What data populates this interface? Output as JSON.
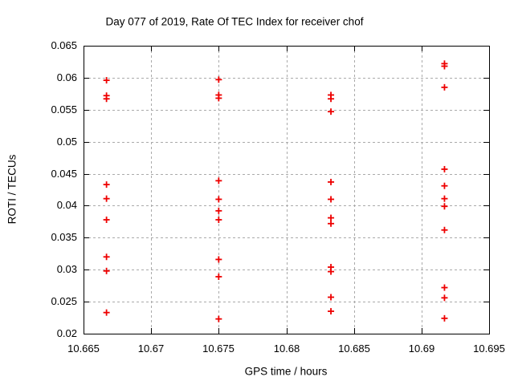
{
  "chart_data": {
    "type": "scatter",
    "title": "Day 077 of 2019, Rate Of TEC Index for receiver chof",
    "xlabel": "GPS time / hours",
    "ylabel": "ROTI / TECUs",
    "xlim": [
      10.665,
      10.695
    ],
    "ylim": [
      0.02,
      0.065
    ],
    "xticks": [
      10.665,
      10.67,
      10.675,
      10.68,
      10.685,
      10.69,
      10.695
    ],
    "xtick_labels": [
      "10.665",
      "10.67",
      "10.675",
      "10.68",
      "10.685",
      "10.69",
      "10.695"
    ],
    "yticks": [
      0.02,
      0.025,
      0.03,
      0.035,
      0.04,
      0.045,
      0.05,
      0.055,
      0.06,
      0.065
    ],
    "ytick_labels": [
      "0.02",
      "0.025",
      "0.03",
      "0.035",
      "0.04",
      "0.045",
      "0.05",
      "0.055",
      "0.06",
      "0.065"
    ],
    "grid": true,
    "legend": "none",
    "marker": "plus",
    "colors": {
      "marker": "#ee0000",
      "grid": "#aaaaaa",
      "axis": "#000000",
      "background": "#ffffff"
    },
    "points": [
      [
        10.6667,
        0.0596
      ],
      [
        10.6667,
        0.0572
      ],
      [
        10.6667,
        0.0567
      ],
      [
        10.6667,
        0.0433
      ],
      [
        10.6667,
        0.0411
      ],
      [
        10.6667,
        0.0378
      ],
      [
        10.6667,
        0.032
      ],
      [
        10.6667,
        0.0298
      ],
      [
        10.6667,
        0.0233
      ],
      [
        10.675,
        0.0597
      ],
      [
        10.675,
        0.0573
      ],
      [
        10.675,
        0.0568
      ],
      [
        10.675,
        0.0439
      ],
      [
        10.675,
        0.041
      ],
      [
        10.675,
        0.0392
      ],
      [
        10.675,
        0.0378
      ],
      [
        10.675,
        0.0316
      ],
      [
        10.675,
        0.0289
      ],
      [
        10.675,
        0.0223
      ],
      [
        10.6833,
        0.0573
      ],
      [
        10.6833,
        0.0567
      ],
      [
        10.6833,
        0.0547
      ],
      [
        10.6833,
        0.0437
      ],
      [
        10.6833,
        0.041
      ],
      [
        10.6833,
        0.0381
      ],
      [
        10.6833,
        0.0372
      ],
      [
        10.6833,
        0.0304
      ],
      [
        10.6833,
        0.0297
      ],
      [
        10.6833,
        0.0257
      ],
      [
        10.6833,
        0.0235
      ],
      [
        10.6917,
        0.0622
      ],
      [
        10.6917,
        0.0618
      ],
      [
        10.6917,
        0.0585
      ],
      [
        10.6917,
        0.0457
      ],
      [
        10.6917,
        0.0431
      ],
      [
        10.6917,
        0.0411
      ],
      [
        10.6917,
        0.0399
      ],
      [
        10.6917,
        0.0362
      ],
      [
        10.6917,
        0.0272
      ],
      [
        10.6917,
        0.0256
      ],
      [
        10.6917,
        0.0224
      ]
    ]
  }
}
